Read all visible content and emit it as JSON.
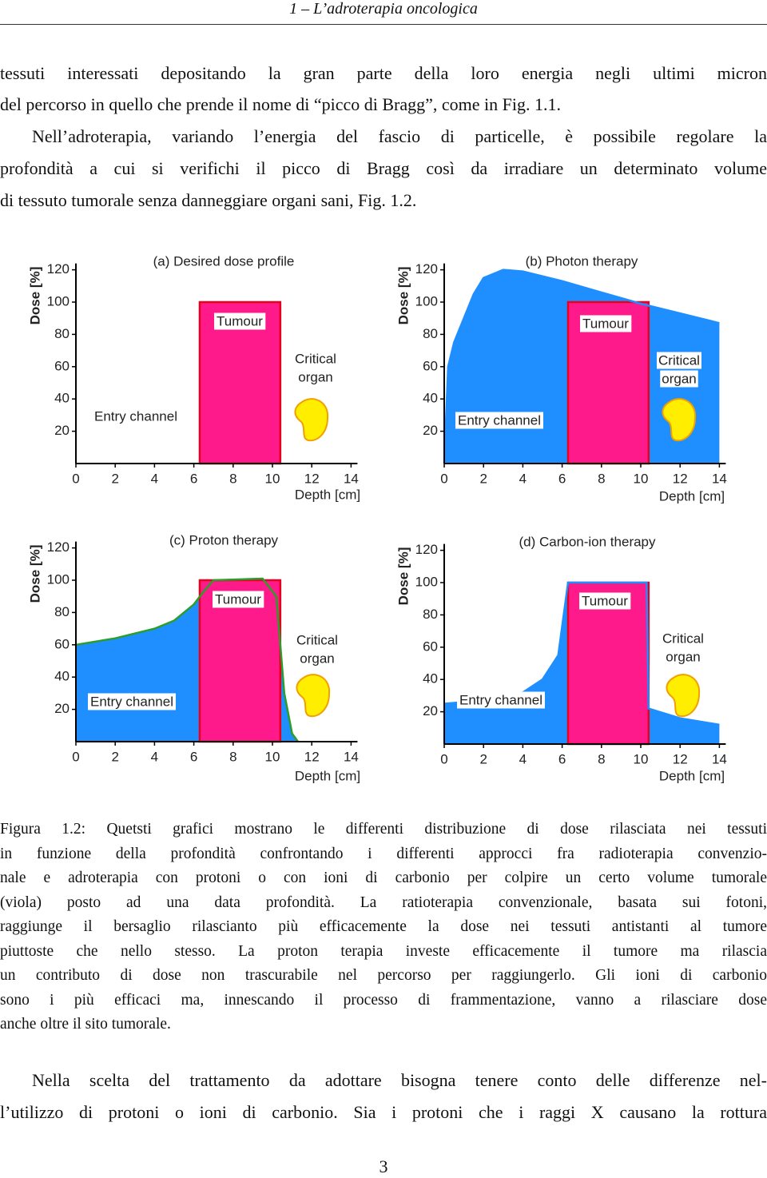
{
  "header": "1 – L’adroterapia oncologica",
  "paragraphs": [
    [
      "tessuti interessati depositando la gran parte della loro energia negli ultimi micron",
      "del percorso in quello che prende il nome di “picco di Bragg”, come in Fig. 1.1."
    ],
    [
      "Nell’adroterapia, variando l’energia del fascio di particelle, è possibile regolare la",
      "profondità a cui si verifichi il picco di Bragg così da irradiare un determinato volume",
      "di tessuto tumorale senza danneggiare organi sani, Fig. 1.2."
    ]
  ],
  "figure": {
    "axis_labels": {
      "y": "Dose [%]",
      "x": "Depth [cm]"
    },
    "xticks": [
      0,
      2,
      4,
      6,
      8,
      10,
      12,
      14
    ],
    "yticks": [
      20,
      40,
      60,
      80,
      100,
      120
    ],
    "tumour_color": "#ff1a8c",
    "tumour_border": "#e8001c",
    "organ_color": "#ffee00",
    "panels": [
      {
        "title": "(a) Desired dose profile",
        "tumour": {
          "label": "Tumour",
          "from": 6.3,
          "to": 10.4,
          "dose": 100
        },
        "critical_organ": [
          "Critical",
          "organ"
        ],
        "entry_channel": "Entry channel"
      },
      {
        "title": "(b) Photon therapy",
        "tumour": {
          "label": "Tumour",
          "from": 6.3,
          "to": 10.4,
          "dose": 100
        },
        "critical_organ": [
          "Critical",
          "organ"
        ],
        "entry_channel": "Entry channel",
        "dose": {
          "color": "#1f8fff",
          "line_color": "#1f8fff",
          "x": [
            0,
            0.2,
            0.5,
            1,
            1.5,
            2,
            3,
            4,
            6,
            8,
            10,
            12,
            14
          ],
          "y": [
            0,
            60,
            75,
            90,
            105,
            115,
            120,
            119,
            113,
            106,
            99,
            93,
            87
          ]
        }
      },
      {
        "title": "(c) Proton therapy",
        "tumour": {
          "label": "Tumour",
          "from": 6.3,
          "to": 10.4,
          "dose": 100
        },
        "critical_organ": [
          "Critical",
          "organ"
        ],
        "entry_channel": "Entry channel",
        "dose": {
          "color": "#1f8fff",
          "line_color": "#2a9d2a",
          "x": [
            0,
            2,
            4,
            5,
            6,
            6.5,
            7,
            9.5,
            10.2,
            10.6,
            11,
            11.3
          ],
          "y": [
            60,
            64,
            70,
            75,
            85,
            93,
            100,
            101,
            90,
            30,
            5,
            0
          ]
        }
      },
      {
        "title": "(d) Carbon-ion therapy",
        "tumour": {
          "label": "Tumour",
          "from": 6.3,
          "to": 10.4,
          "dose": 100
        },
        "critical_organ": [
          "Critical",
          "organ"
        ],
        "entry_channel": "Entry channel",
        "dose": {
          "color": "#1f8fff",
          "line_color": "#1f8fff",
          "x": [
            0,
            2,
            4,
            5,
            5.8,
            6.3,
            10.3,
            10.4,
            12,
            14
          ],
          "y": [
            25,
            27,
            32,
            40,
            55,
            100,
            100,
            22,
            16,
            12
          ]
        }
      }
    ]
  },
  "caption": {
    "label": "Figura 1.2:",
    "lines": [
      "Quetsti grafici mostrano le differenti distribuzione di dose rilasciata nei tessuti",
      "in funzione della profondità confrontando i differenti approcci fra radioterapia convenzio-",
      "nale e adroterapia con protoni o con ioni di carbonio per colpire un certo volume tumorale",
      "(viola) posto ad una data profondità. La ratioterapia convenzionale, basata sui fotoni,",
      "raggiunge il bersaglio rilascianto più efficacemente la dose nei tessuti antistanti al tumore",
      "piuttoste che nello stesso. La proton terapia investe efficacemente il tumore ma rilascia",
      "un contributo di dose non trascurabile nel percorso per raggiungerlo. Gli ioni di carbonio",
      "sono i più efficaci ma, innescando il processo di frammentazione, vanno a rilasciare dose",
      "anche oltre il sito tumorale."
    ]
  },
  "paragraphs_after": [
    [
      "Nella scelta del trattamento da adottare bisogna tenere conto delle differenze nel-",
      "l’utilizzo di protoni o ioni di carbonio. Sia i protoni che i raggi X causano la rottura"
    ]
  ],
  "page_number": "3"
}
